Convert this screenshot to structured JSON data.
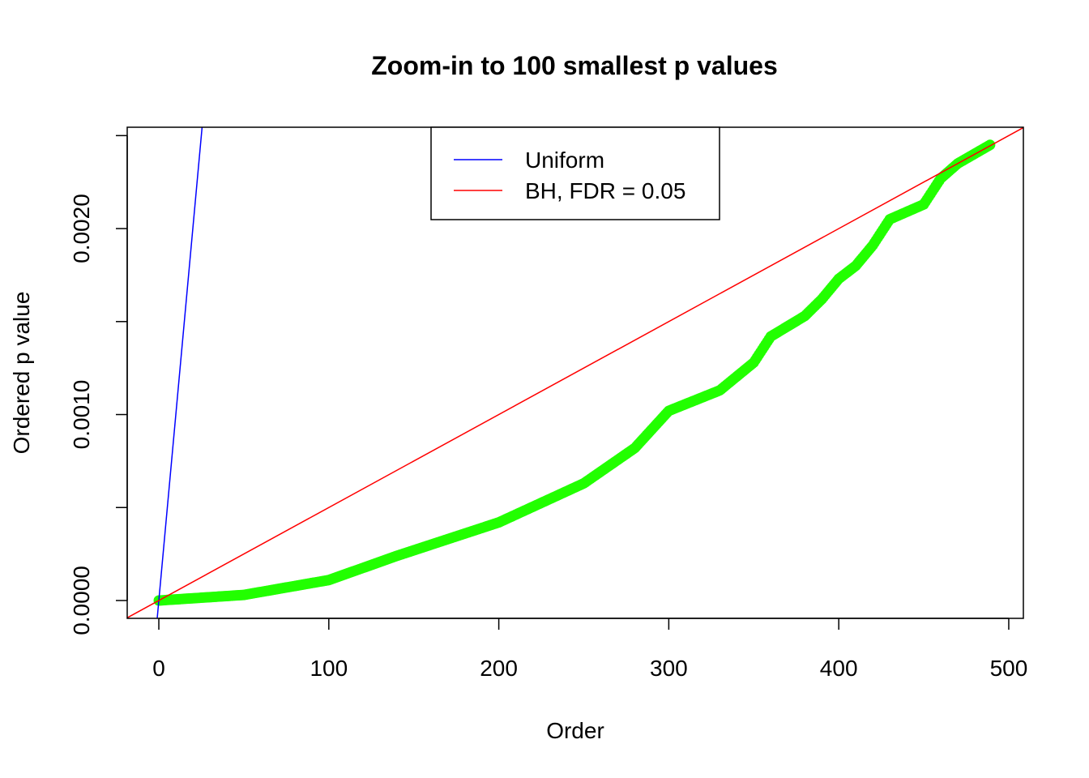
{
  "chart_data": {
    "type": "scatter",
    "title": "Zoom-in to 100 smallest p values",
    "xlabel": "Order",
    "ylabel": "Ordered p value",
    "xlim": [
      -18.6,
      508.6
    ],
    "ylim": [
      -9.59e-05,
      0.002545
    ],
    "xticks": [
      0,
      100,
      200,
      300,
      400,
      500
    ],
    "xtick_labels": [
      "0",
      "100",
      "200",
      "300",
      "400",
      "500"
    ],
    "yticks": [
      0,
      0.0005,
      0.001,
      0.0015,
      0.002,
      0.0025
    ],
    "ytick_labels": [
      "0.0000",
      "",
      "0.0010",
      "",
      "0.0020",
      ""
    ],
    "grid": false,
    "legend": {
      "placement": "top",
      "entries": [
        {
          "label": "Uniform",
          "color": "#0000ff"
        },
        {
          "label": "BH, FDR = 0.05",
          "color": "#ff0000"
        }
      ]
    },
    "lines": [
      {
        "name": "Uniform",
        "slope": 0.0001,
        "intercept": 0,
        "color": "#0000ff"
      },
      {
        "name": "BH, FDR = 0.05",
        "slope": 5e-06,
        "intercept": 0,
        "color": "#ff0000"
      }
    ],
    "points": {
      "color": "#22ff00",
      "n": 489,
      "x": [
        0,
        50,
        100,
        140,
        200,
        250,
        280,
        300,
        330,
        350,
        360,
        380,
        390,
        400,
        410,
        420,
        430,
        450,
        460,
        470,
        489
      ],
      "y": [
        0,
        3e-05,
        0.00011,
        0.00024,
        0.00042,
        0.00063,
        0.00082,
        0.00102,
        0.00113,
        0.00128,
        0.00142,
        0.00153,
        0.00162,
        0.00173,
        0.0018,
        0.00191,
        0.00205,
        0.00213,
        0.00227,
        0.00235,
        0.00245
      ]
    }
  }
}
